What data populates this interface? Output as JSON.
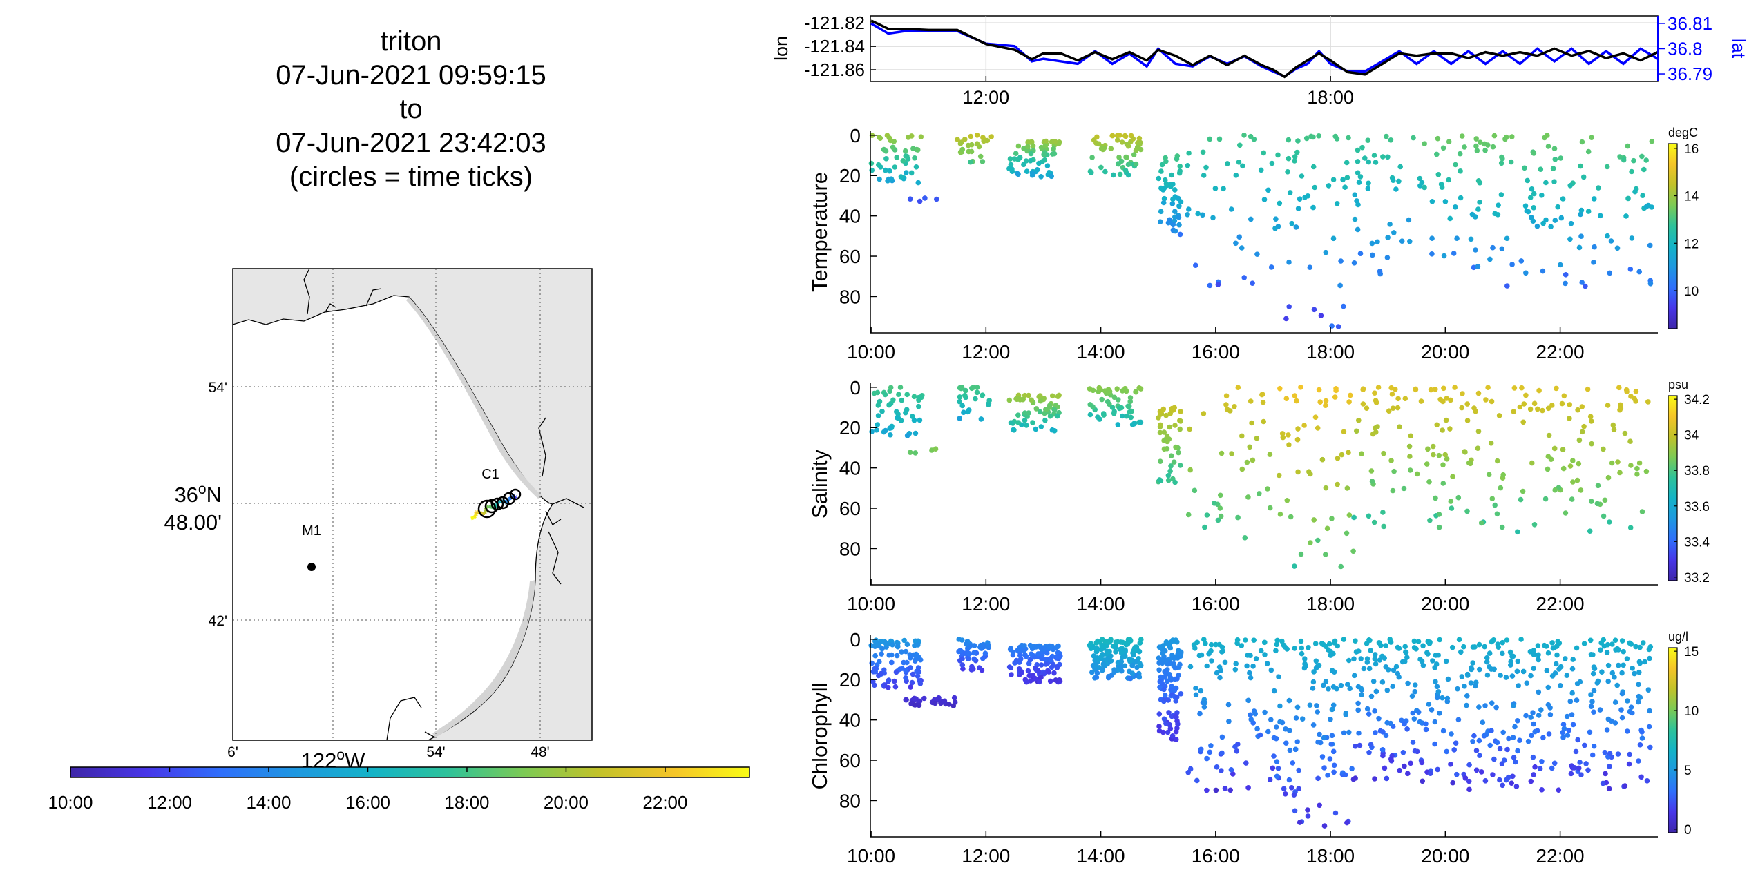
{
  "title": {
    "lines": [
      "triton",
      "07-Jun-2021 09:59:15",
      "to",
      "07-Jun-2021 23:42:03",
      "(circles = time ticks)"
    ]
  },
  "colors": {
    "lon_line": "#000000",
    "lat_line": "#0000ff",
    "land": "#e6e6e6",
    "water": "#ffffff",
    "colormap": [
      "#3e26a8",
      "#4836e8",
      "#2f6ffb",
      "#1e98e0",
      "#14b3c7",
      "#2ec29a",
      "#7cca55",
      "#c2c22a",
      "#f5c529",
      "#f9fb15"
    ]
  },
  "map": {
    "lat_tick_labels": [
      "54'",
      "36°N 48.00'",
      "42'"
    ],
    "lon_tick_labels": [
      "6'",
      "122°W",
      "54'",
      "48'"
    ],
    "lat_deg_label": "36",
    "lat_deg_suffix": "N",
    "lat_min_label": "48.00'",
    "lon_deg_label": "122",
    "lon_deg_suffix": "W",
    "stations": [
      {
        "name": "M1",
        "marker": "dot"
      },
      {
        "name": "C1",
        "marker": "none"
      }
    ],
    "time_colorbar_ticks": [
      "10:00",
      "12:00",
      "14:00",
      "16:00",
      "18:00",
      "20:00",
      "22:00"
    ]
  },
  "chart_data": [
    {
      "type": "line",
      "ylabel_left": "lon",
      "ylabel_right": "lat",
      "x_tick_labels": [
        "12:00",
        "18:00"
      ],
      "x_range_hours": [
        9.987,
        23.701
      ],
      "y_left_ticks": [
        "-121.82",
        "-121.84",
        "-121.86"
      ],
      "y_left_range": [
        -121.87,
        -121.814
      ],
      "y_right_ticks": [
        "36.81",
        "36.8",
        "36.79"
      ],
      "y_right_range": [
        36.787,
        36.813
      ],
      "grid": true,
      "series": [
        {
          "name": "lon",
          "axis": "left",
          "x": [
            10.0,
            10.3,
            10.6,
            11.0,
            11.5,
            12.0,
            12.5,
            12.8,
            13.0,
            13.3,
            13.6,
            13.9,
            14.2,
            14.5,
            14.8,
            15.0,
            15.3,
            15.6,
            15.9,
            16.2,
            16.5,
            16.8,
            17.0,
            17.2,
            17.4,
            17.6,
            17.8,
            18.0,
            18.3,
            18.6,
            18.9,
            19.2,
            19.5,
            19.8,
            20.1,
            20.4,
            20.7,
            21.0,
            21.3,
            21.6,
            21.9,
            22.2,
            22.5,
            22.8,
            23.1,
            23.4,
            23.7
          ],
          "values": [
            -121.818,
            -121.825,
            -121.825,
            -121.826,
            -121.826,
            -121.838,
            -121.843,
            -121.851,
            -121.846,
            -121.846,
            -121.852,
            -121.845,
            -121.851,
            -121.845,
            -121.852,
            -121.843,
            -121.848,
            -121.856,
            -121.848,
            -121.856,
            -121.848,
            -121.856,
            -121.86,
            -121.866,
            -121.858,
            -121.852,
            -121.846,
            -121.852,
            -121.862,
            -121.864,
            -121.855,
            -121.846,
            -121.848,
            -121.846,
            -121.846,
            -121.85,
            -121.845,
            -121.848,
            -121.845,
            -121.848,
            -121.842,
            -121.848,
            -121.844,
            -121.85,
            -121.846,
            -121.852,
            -121.845
          ]
        },
        {
          "name": "lat",
          "axis": "right",
          "x": [
            10.0,
            10.3,
            10.6,
            11.0,
            11.5,
            12.0,
            12.5,
            12.8,
            13.0,
            13.3,
            13.6,
            13.9,
            14.2,
            14.5,
            14.8,
            15.0,
            15.3,
            15.6,
            15.9,
            16.2,
            16.5,
            16.8,
            17.0,
            17.2,
            17.4,
            17.6,
            17.8,
            18.0,
            18.3,
            18.6,
            18.9,
            19.2,
            19.5,
            19.8,
            20.1,
            20.4,
            20.7,
            21.0,
            21.3,
            21.6,
            21.9,
            22.2,
            22.5,
            22.8,
            23.1,
            23.4,
            23.7
          ],
          "values": [
            36.81,
            36.806,
            36.807,
            36.807,
            36.807,
            36.802,
            36.801,
            36.795,
            36.796,
            36.795,
            36.794,
            36.799,
            36.794,
            36.798,
            36.793,
            36.8,
            36.794,
            36.793,
            36.797,
            36.794,
            36.797,
            36.793,
            36.791,
            36.789,
            36.792,
            36.794,
            36.799,
            36.794,
            36.791,
            36.791,
            36.795,
            36.799,
            36.794,
            36.799,
            36.794,
            36.799,
            36.794,
            36.799,
            36.794,
            36.8,
            36.795,
            36.8,
            36.794,
            36.799,
            36.794,
            36.8,
            36.796
          ]
        }
      ]
    },
    {
      "type": "scatter",
      "ylabel": "Temperature",
      "units": "degC",
      "x_tick_labels": [
        "10:00",
        "12:00",
        "14:00",
        "16:00",
        "18:00",
        "20:00",
        "22:00"
      ],
      "x_range_hours": [
        9.987,
        23.701
      ],
      "y_ticks": [
        "0",
        "20",
        "40",
        "60",
        "80"
      ],
      "y_range": [
        -2,
        98
      ],
      "y_reversed": true,
      "color_range": [
        8.4,
        16.2
      ],
      "color_ticks": [
        "16",
        "14",
        "12",
        "10"
      ],
      "groups": [
        {
          "t0": 10.0,
          "t1": 10.9,
          "zmin": 0,
          "zmax": 24,
          "cmin": 11.0,
          "cmax": 14.0,
          "n": 45
        },
        {
          "t0": 10.6,
          "t1": 11.3,
          "zmin": 30,
          "zmax": 33,
          "cmin": 9.5,
          "cmax": 10.0,
          "n": 4
        },
        {
          "t0": 11.5,
          "t1": 12.1,
          "zmin": 0,
          "zmax": 16,
          "cmin": 12.5,
          "cmax": 14.5,
          "n": 24
        },
        {
          "t0": 12.4,
          "t1": 13.3,
          "zmin": 3,
          "zmax": 22,
          "cmin": 10.5,
          "cmax": 14.0,
          "n": 60
        },
        {
          "t0": 13.8,
          "t1": 14.7,
          "zmin": 0,
          "zmax": 20,
          "cmin": 12.0,
          "cmax": 14.5,
          "n": 55
        },
        {
          "t0": 15.0,
          "t1": 15.4,
          "zmin": 10,
          "zmax": 50,
          "cmin": 10.0,
          "cmax": 13.0,
          "n": 45
        },
        {
          "t0": 15.5,
          "t1": 17.0,
          "zmin": 0,
          "zmax": 75,
          "cmin": 9.5,
          "cmax": 13.0,
          "n": 40
        },
        {
          "t0": 17.0,
          "t1": 18.4,
          "zmin": 0,
          "zmax": 97,
          "cmin": 9.0,
          "cmax": 13.0,
          "n": 50
        },
        {
          "t0": 18.4,
          "t1": 19.6,
          "zmin": 0,
          "zmax": 70,
          "cmin": 9.5,
          "cmax": 13.0,
          "n": 45
        },
        {
          "t0": 19.6,
          "t1": 23.6,
          "zmin": 0,
          "zmax": 75,
          "cmin": 9.5,
          "cmax": 13.5,
          "n": 150
        }
      ]
    },
    {
      "type": "scatter",
      "ylabel": "Salinity",
      "units": "psu",
      "x_tick_labels": [
        "10:00",
        "12:00",
        "14:00",
        "16:00",
        "18:00",
        "20:00",
        "22:00"
      ],
      "x_range_hours": [
        9.987,
        23.701
      ],
      "y_ticks": [
        "0",
        "20",
        "40",
        "60",
        "80"
      ],
      "y_range": [
        -2,
        98
      ],
      "y_reversed": true,
      "color_range": [
        33.18,
        34.22
      ],
      "color_ticks": [
        "34.2",
        "34",
        "33.8",
        "33.6",
        "33.4",
        "33.2"
      ],
      "groups": [
        {
          "t0": 10.0,
          "t1": 10.9,
          "zmin": 0,
          "zmax": 24,
          "cmin": 33.55,
          "cmax": 33.8,
          "n": 45
        },
        {
          "t0": 10.6,
          "t1": 11.3,
          "zmin": 30,
          "zmax": 33,
          "cmin": 33.8,
          "cmax": 33.9,
          "n": 4
        },
        {
          "t0": 11.5,
          "t1": 12.1,
          "zmin": 0,
          "zmax": 16,
          "cmin": 33.55,
          "cmax": 33.8,
          "n": 24
        },
        {
          "t0": 12.4,
          "t1": 13.3,
          "zmin": 3,
          "zmax": 22,
          "cmin": 33.6,
          "cmax": 33.95,
          "n": 60
        },
        {
          "t0": 13.8,
          "t1": 14.7,
          "zmin": 0,
          "zmax": 20,
          "cmin": 33.6,
          "cmax": 33.9,
          "n": 55
        },
        {
          "t0": 15.0,
          "t1": 15.4,
          "zmin": 10,
          "zmax": 50,
          "cmin": 33.7,
          "cmax": 34.0,
          "n": 45
        },
        {
          "t0": 15.5,
          "t1": 17.0,
          "zmin": 0,
          "zmax": 75,
          "cmin": 33.7,
          "cmax": 34.05,
          "n": 40
        },
        {
          "t0": 17.0,
          "t1": 18.4,
          "zmin": 0,
          "zmax": 97,
          "cmin": 33.7,
          "cmax": 34.1,
          "n": 50
        },
        {
          "t0": 18.4,
          "t1": 19.6,
          "zmin": 0,
          "zmax": 70,
          "cmin": 33.7,
          "cmax": 34.05,
          "n": 45
        },
        {
          "t0": 19.6,
          "t1": 23.6,
          "zmin": 0,
          "zmax": 75,
          "cmin": 33.7,
          "cmax": 34.05,
          "n": 150
        }
      ]
    },
    {
      "type": "scatter",
      "ylabel": "Chlorophyll",
      "units": "ug/l",
      "x_tick_labels": [
        "10:00",
        "12:00",
        "14:00",
        "16:00",
        "18:00",
        "20:00",
        "22:00"
      ],
      "x_range_hours": [
        9.987,
        23.701
      ],
      "y_ticks": [
        "0",
        "20",
        "40",
        "60",
        "80"
      ],
      "y_range": [
        -2,
        98
      ],
      "y_reversed": true,
      "color_range": [
        -0.3,
        15.3
      ],
      "color_ticks": [
        "15",
        "10",
        "5",
        "0"
      ],
      "groups": [
        {
          "t0": 10.0,
          "t1": 10.9,
          "zmin": 0,
          "zmax": 24,
          "cmin": 1.0,
          "cmax": 5.0,
          "n": 90
        },
        {
          "t0": 10.6,
          "t1": 11.5,
          "zmin": 29,
          "zmax": 33,
          "cmin": 0.3,
          "cmax": 1.0,
          "n": 30
        },
        {
          "t0": 11.5,
          "t1": 12.1,
          "zmin": 0,
          "zmax": 16,
          "cmin": 1.0,
          "cmax": 4.5,
          "n": 50
        },
        {
          "t0": 12.4,
          "t1": 13.3,
          "zmin": 3,
          "zmax": 22,
          "cmin": 0.5,
          "cmax": 4.0,
          "n": 120
        },
        {
          "t0": 13.8,
          "t1": 14.7,
          "zmin": 0,
          "zmax": 20,
          "cmin": 3.5,
          "cmax": 7.0,
          "n": 140
        },
        {
          "t0": 15.0,
          "t1": 15.4,
          "zmin": 0,
          "zmax": 50,
          "cmin": 0.5,
          "cmax": 5.0,
          "n": 110
        },
        {
          "t0": 15.5,
          "t1": 17.0,
          "zmin": 0,
          "zmax": 75,
          "cmin": 0.5,
          "cmax": 6.5,
          "n": 90
        },
        {
          "t0": 17.0,
          "t1": 18.4,
          "zmin": 0,
          "zmax": 97,
          "cmin": 0.3,
          "cmax": 6.5,
          "n": 120
        },
        {
          "t0": 18.4,
          "t1": 19.6,
          "zmin": 0,
          "zmax": 70,
          "cmin": 0.5,
          "cmax": 6.5,
          "n": 110
        },
        {
          "t0": 19.6,
          "t1": 23.6,
          "zmin": 0,
          "zmax": 75,
          "cmin": 0.5,
          "cmax": 6.5,
          "n": 330
        }
      ]
    }
  ]
}
